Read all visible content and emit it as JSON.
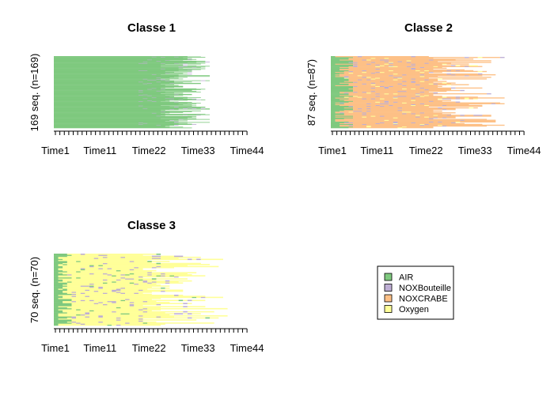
{
  "chart_data": {
    "type": "sequence_index_plot",
    "states": [
      {
        "name": "AIR",
        "color": "#7FC97F"
      },
      {
        "name": "NOXBouteille",
        "color": "#BEAED4"
      },
      {
        "name": "NOXCRABE",
        "color": "#FDC086"
      },
      {
        "name": "Oxygen",
        "color": "#FFFF99"
      }
    ],
    "x_ticks": [
      "Time1",
      "Time11",
      "Time22",
      "Time33",
      "Time44"
    ],
    "x_range": [
      1,
      44
    ],
    "panels": [
      {
        "title": "Classe 1",
        "ylabel": "169 seq. (n=169)",
        "n": 169,
        "profile": "air"
      },
      {
        "title": "Classe 2",
        "ylabel": "87 seq. (n=87)",
        "n": 87,
        "profile": "noxcrabe"
      },
      {
        "title": "Classe 3",
        "ylabel": "70 seq. (n=70)",
        "n": 70,
        "profile": "oxygen"
      }
    ]
  }
}
